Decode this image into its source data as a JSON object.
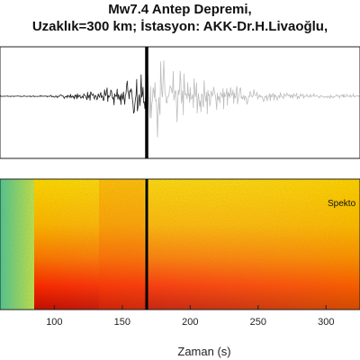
{
  "header": {
    "title_line1": "Mw7.4 Antep Depremi,",
    "title_line2": "Uzaklık=300 km; İstasyon: AKK-Dr.H.Livaoğlu,"
  },
  "chart_data": [
    {
      "type": "line",
      "panel": "waveform",
      "series": [
        {
          "values": [
            0.01,
            0.01,
            0.02,
            0.03,
            0.05,
            0.08,
            0.14,
            0.22,
            0.33,
            0.45,
            0.62,
            1.0,
            0.92,
            0.78,
            0.62,
            0.5,
            0.4,
            0.32,
            0.25,
            0.19,
            0.14,
            0.1,
            0.08,
            0.06,
            0.05
          ]
        }
      ],
      "x": [
        60,
        80,
        90,
        100,
        110,
        120,
        130,
        140,
        150,
        160,
        165,
        170,
        175,
        180,
        190,
        200,
        210,
        220,
        230,
        240,
        250,
        260,
        280,
        300,
        320
      ],
      "xlim": [
        60,
        325
      ],
      "grid": false,
      "colors": {
        "before_marker": "#222222",
        "after_marker": "#bdbdbd",
        "marker": "#000000"
      }
    },
    {
      "type": "heatmap",
      "panel": "spectrogram",
      "xlim": [
        60,
        325
      ],
      "xticks": [
        100,
        150,
        200,
        250,
        300
      ],
      "xlabel": "Zaman (s)",
      "marker_x": 168,
      "annotation": "Spekto",
      "colormap": [
        "#3fd3a8",
        "#b9f05a",
        "#ffe000",
        "#ff8c00",
        "#ff2a00",
        "#b80000"
      ]
    }
  ],
  "labels": {
    "xtick_100": "100",
    "xtick_150": "150",
    "xtick_200": "200",
    "xtick_250": "250",
    "xtick_300": "300"
  }
}
